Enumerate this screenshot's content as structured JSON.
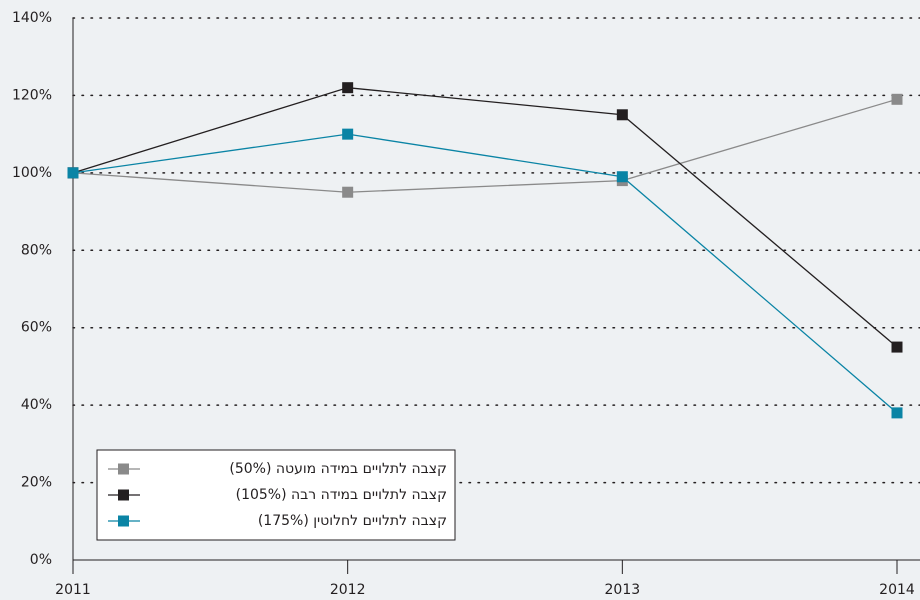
{
  "chart_data": {
    "type": "line",
    "x": [
      2011,
      2012,
      2013,
      2014
    ],
    "xlim": [
      2011,
      2014
    ],
    "xticks": [
      2011,
      2012,
      2013,
      2014
    ],
    "ylim": [
      0,
      140
    ],
    "yticks": [
      {
        "value": 0,
        "label": "0%"
      },
      {
        "value": 20,
        "label": "20%"
      },
      {
        "value": 40,
        "label": "40%"
      },
      {
        "value": 60,
        "label": "60%"
      },
      {
        "value": 80,
        "label": "80%"
      },
      {
        "value": 100,
        "label": "100%"
      },
      {
        "value": 120,
        "label": "120%"
      },
      {
        "value": 140,
        "label": "140%"
      }
    ],
    "grid": true,
    "legend": "bottom-left",
    "series": [
      {
        "name": "קצבה לתלויים במידה מועטה (50%)",
        "color": "#8a8a8a",
        "values": [
          100,
          95,
          98,
          119
        ]
      },
      {
        "name": "קצבה לתלויים במידה רבה (105%)",
        "color": "#231f20",
        "values": [
          100,
          122,
          115,
          55
        ]
      },
      {
        "name": "קצבה לתלויים לחלוטין (175%)",
        "color": "#0a84a5",
        "values": [
          100,
          110,
          99,
          38
        ]
      }
    ]
  }
}
